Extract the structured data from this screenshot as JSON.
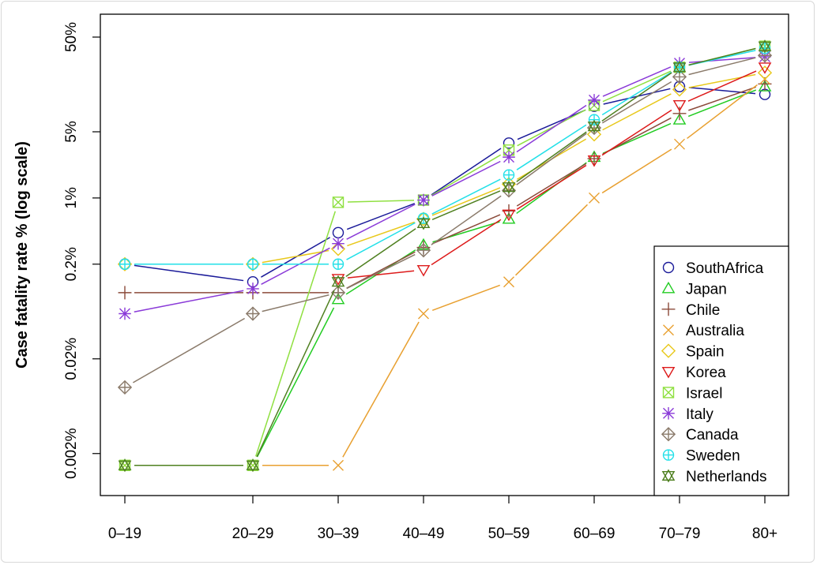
{
  "chart_data": {
    "type": "line",
    "title": "",
    "xlabel": "",
    "ylabel": "Case fatality rate % (log scale)",
    "y_scale": "log",
    "ylim": [
      0.0012,
      90
    ],
    "y_ticks": [
      0.002,
      0.02,
      0.2,
      1,
      5,
      50
    ],
    "y_tick_labels": [
      "0.002%",
      "0.02%",
      "0.2%",
      "1%",
      "5%",
      "50%"
    ],
    "categories": [
      "0–19",
      "20–29",
      "30–39",
      "40–49",
      "50–59",
      "60–69",
      "70–79",
      "80+"
    ],
    "x_age_midpoints": [
      10,
      25,
      35,
      45,
      55,
      65,
      75,
      85
    ],
    "grid": false,
    "legend_position": "bottom-right",
    "series": [
      {
        "name": "SouthAfrica",
        "color": "#1a1a99",
        "marker": "circle",
        "values": [
          0.2,
          0.13,
          0.43,
          0.95,
          3.8,
          9.3,
          15,
          12.4
        ]
      },
      {
        "name": "Japan",
        "color": "#22cc22",
        "marker": "triangle",
        "values": [
          0.0015,
          0.0015,
          0.085,
          0.32,
          0.6,
          2.7,
          6.7,
          15
        ]
      },
      {
        "name": "Chile",
        "color": "#8b4a3a",
        "marker": "plus",
        "values": [
          0.1,
          0.1,
          0.1,
          0.3,
          0.73,
          2.6,
          7.8,
          16
        ]
      },
      {
        "name": "Australia",
        "color": "#e8a030",
        "marker": "cross",
        "values": [
          0.0015,
          0.0015,
          0.0015,
          0.06,
          0.13,
          1.0,
          3.7,
          18
        ]
      },
      {
        "name": "Spain",
        "color": "#e8c81a",
        "marker": "diamond",
        "values": [
          0.2,
          0.2,
          0.29,
          0.6,
          1.4,
          4.7,
          14,
          21
        ]
      },
      {
        "name": "Korea",
        "color": "#dd1a1a",
        "marker": "triangle-down",
        "values": [
          null,
          null,
          0.14,
          0.174,
          0.67,
          2.5,
          9.6,
          24
        ]
      },
      {
        "name": "Israel",
        "color": "#8fe040",
        "marker": "square-cross",
        "values": [
          0.0015,
          0.0015,
          0.9,
          0.95,
          3.2,
          9.5,
          24,
          40
        ]
      },
      {
        "name": "Italy",
        "color": "#8a3ad8",
        "marker": "asterisk",
        "values": [
          0.06,
          0.11,
          0.33,
          0.95,
          2.7,
          10.8,
          26.5,
          31
        ]
      },
      {
        "name": "Canada",
        "color": "#8a7a6a",
        "marker": "diamond-plus",
        "values": [
          0.01,
          0.06,
          0.1,
          0.28,
          1.2,
          5.5,
          19,
          32
        ]
      },
      {
        "name": "Sweden",
        "color": "#22e0e8",
        "marker": "circle-plus",
        "values": [
          0.2,
          0.2,
          0.2,
          0.61,
          1.75,
          6.7,
          24,
          38
        ]
      },
      {
        "name": "Netherlands",
        "color": "#4f8020",
        "marker": "star-of-david",
        "values": [
          0.0015,
          0.0015,
          0.13,
          0.54,
          1.3,
          5.7,
          24,
          40
        ]
      }
    ]
  }
}
